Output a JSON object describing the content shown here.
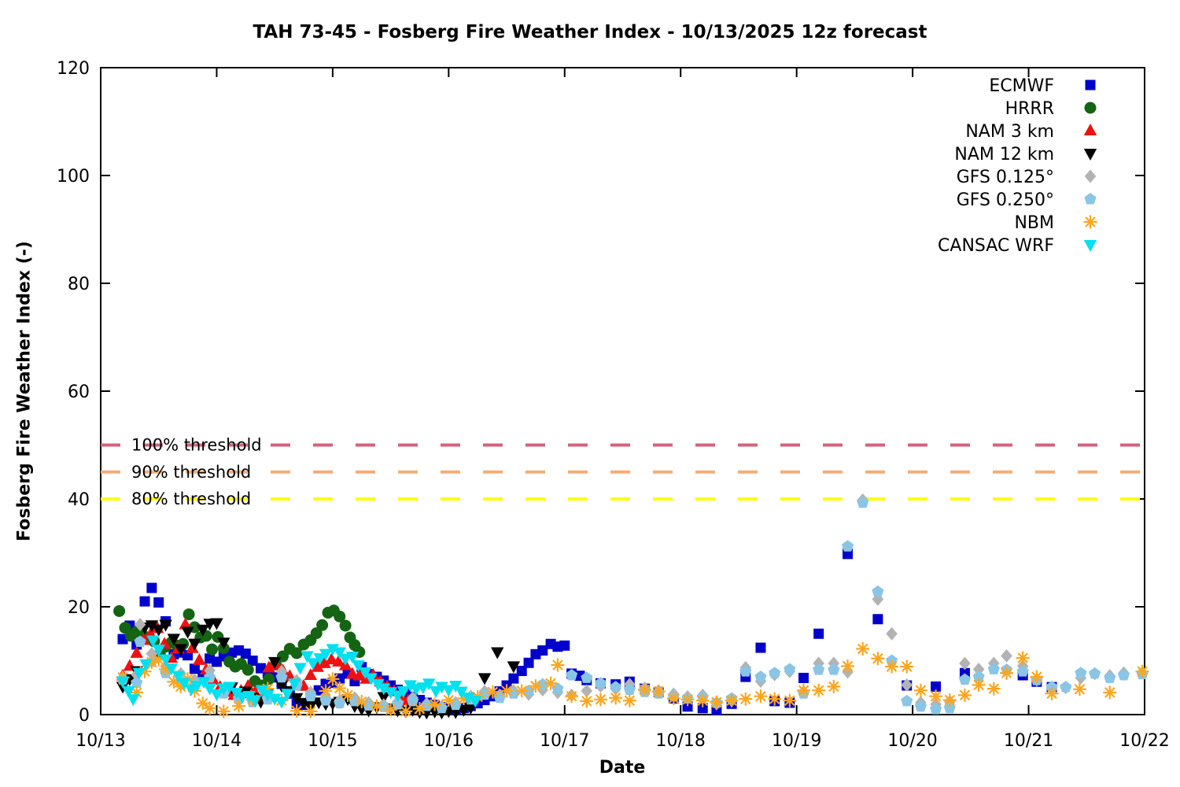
{
  "chart_data": {
    "type": "scatter",
    "title": "TAH 73-45 - Fosberg Fire Weather Index - 10/13/2025 12z forecast",
    "xlabel": "Date",
    "ylabel": "Fosberg Fire Weather Index (-)",
    "x_axis": {
      "tick_labels": [
        "10/13",
        "10/14",
        "10/15",
        "10/16",
        "10/17",
        "10/18",
        "10/19",
        "10/20",
        "10/21",
        "10/22"
      ],
      "unit": "days since 10/13",
      "range": [
        0,
        9
      ]
    },
    "y_axis": {
      "ticks": [
        0,
        20,
        40,
        60,
        80,
        100,
        120
      ],
      "range": [
        0,
        120
      ]
    },
    "grid": false,
    "legend_position": "top-right",
    "thresholds": [
      {
        "label": "100% threshold",
        "value": 50,
        "color": "#d4627e"
      },
      {
        "label": "90% threshold",
        "value": 45,
        "color": "#f6ad75"
      },
      {
        "label": "80% threshold",
        "value": 40,
        "color": "#ffff00"
      }
    ],
    "series": [
      {
        "name": "ECMWF",
        "marker": "square",
        "color": "#0000cd",
        "x": [
          0.19,
          0.25,
          0.31,
          0.38,
          0.44,
          0.5,
          0.56,
          0.63,
          0.69,
          0.75,
          0.81,
          0.88,
          0.94,
          1.0,
          1.06,
          1.13,
          1.19,
          1.25,
          1.31,
          1.38,
          1.44,
          1.5,
          1.56,
          1.63,
          1.69,
          1.75,
          1.81,
          1.88,
          1.94,
          2.0,
          2.06,
          2.13,
          2.19,
          2.25,
          2.31,
          2.38,
          2.44,
          2.5,
          2.56,
          2.63,
          2.69,
          2.75,
          2.81,
          2.88,
          2.94,
          3.0,
          3.06,
          3.13,
          3.19,
          3.25,
          3.31,
          3.38,
          3.44,
          3.5,
          3.56,
          3.63,
          3.69,
          3.75,
          3.81,
          3.88,
          3.94,
          4.0,
          4.06,
          4.13,
          4.19,
          4.31,
          4.44,
          4.56,
          4.69,
          4.81,
          4.94,
          5.06,
          5.19,
          5.31,
          5.44,
          5.56,
          5.69,
          5.81,
          5.94,
          6.06,
          6.19,
          6.44,
          6.7,
          6.95,
          7.2,
          7.45,
          7.95,
          8.07,
          8.2
        ],
        "y": [
          14.0,
          16.5,
          13.0,
          21.0,
          23.5,
          20.8,
          17.3,
          11.2,
          11.5,
          11.0,
          8.5,
          7.3,
          10.4,
          9.8,
          10.8,
          11.5,
          11.9,
          11.3,
          10.0,
          8.6,
          7.7,
          6.9,
          5.7,
          3.9,
          2.0,
          1.8,
          3.4,
          4.5,
          5.7,
          5.9,
          6.7,
          7.6,
          6.2,
          8.8,
          7.5,
          7.0,
          6.3,
          5.4,
          4.6,
          3.9,
          3.3,
          2.7,
          2.2,
          1.8,
          1.4,
          1.1,
          0.9,
          1.2,
          1.6,
          2.1,
          2.7,
          3.4,
          4.3,
          5.4,
          6.7,
          8.1,
          9.6,
          11.2,
          11.9,
          13.1,
          12.6,
          12.8,
          7.6,
          7.2,
          6.4,
          5.8,
          5.6,
          6.1,
          4.8,
          4.2,
          3.0,
          1.5,
          1.2,
          0.8,
          2.0,
          7.0,
          12.4,
          2.5,
          2.2,
          6.8,
          15.0,
          29.8,
          17.7,
          5.4,
          5.2,
          7.7,
          7.3,
          6.1,
          5.1
        ]
      },
      {
        "name": "HRRR",
        "marker": "circle",
        "color": "#146414",
        "x": [
          0.16,
          0.21,
          0.26,
          0.31,
          0.36,
          0.41,
          0.46,
          0.51,
          0.56,
          0.61,
          0.66,
          0.71,
          0.76,
          0.81,
          0.86,
          0.91,
          0.96,
          1.01,
          1.06,
          1.11,
          1.16,
          1.21,
          1.27,
          1.33,
          1.39,
          1.45,
          1.51,
          1.57,
          1.63,
          1.69,
          1.75,
          1.81,
          1.86,
          1.91,
          1.96,
          2.01,
          2.06,
          2.11,
          2.15,
          2.19,
          2.23
        ],
        "y": [
          19.2,
          16.1,
          14.6,
          15.4,
          14.8,
          14.3,
          13.6,
          11.2,
          12.6,
          13.4,
          12.8,
          13.1,
          18.6,
          16.2,
          14.3,
          14.6,
          12.1,
          14.4,
          12.3,
          9.8,
          8.9,
          9.4,
          8.3,
          6.2,
          5.4,
          6.6,
          9.3,
          10.8,
          12.2,
          11.4,
          13.0,
          13.8,
          15.1,
          16.6,
          18.9,
          19.3,
          18.2,
          16.5,
          14.3,
          12.9,
          11.6
        ]
      },
      {
        "name": "NAM 3 km",
        "marker": "triangle-up",
        "color": "#ee1111",
        "x": [
          0.19,
          0.25,
          0.31,
          0.37,
          0.43,
          0.49,
          0.55,
          0.61,
          0.67,
          0.73,
          0.79,
          0.85,
          0.91,
          0.97,
          1.03,
          1.09,
          1.15,
          1.21,
          1.27,
          1.33,
          1.39,
          1.45,
          1.51,
          1.57,
          1.63,
          1.69,
          1.75,
          1.81,
          1.87,
          1.93,
          1.99,
          2.05,
          2.11,
          2.17,
          2.23,
          2.29,
          2.35,
          2.41,
          2.47,
          2.53,
          2.59,
          2.65
        ],
        "y": [
          7.2,
          9.0,
          11.4,
          13.8,
          14.9,
          16.0,
          13.1,
          10.5,
          12.2,
          16.7,
          12.3,
          10.1,
          8.3,
          6.4,
          5.1,
          4.2,
          3.6,
          4.4,
          5.3,
          4.1,
          3.2,
          8.7,
          9.3,
          8.2,
          7.1,
          6.2,
          5.3,
          7.3,
          8.8,
          9.5,
          10.2,
          9.8,
          9.1,
          7.5,
          7.2,
          6.6,
          7.3,
          6.1,
          5.2,
          4.3,
          3.4,
          2.6
        ]
      },
      {
        "name": "NAM 12 km",
        "marker": "triangle-down",
        "color": "#000000",
        "x": [
          0.19,
          0.25,
          0.31,
          0.38,
          0.44,
          0.5,
          0.56,
          0.63,
          0.69,
          0.75,
          0.81,
          0.88,
          0.94,
          1.0,
          1.06,
          1.13,
          1.19,
          1.25,
          1.31,
          1.38,
          1.44,
          1.5,
          1.56,
          1.63,
          1.69,
          1.75,
          1.81,
          1.88,
          1.94,
          2.0,
          2.06,
          2.13,
          2.19,
          2.25,
          2.31,
          2.38,
          2.44,
          2.5,
          2.56,
          2.63,
          2.69,
          2.75,
          2.81,
          2.88,
          2.94,
          3.0,
          3.06,
          3.13,
          3.19,
          3.31,
          3.42,
          3.56
        ],
        "y": [
          5.2,
          6.6,
          8.1,
          16.2,
          16.6,
          15.8,
          16.7,
          14.1,
          12.2,
          15.4,
          13.2,
          15.8,
          16.9,
          17.0,
          13.4,
          5.1,
          3.4,
          4.3,
          3.1,
          2.4,
          4.0,
          9.8,
          5.4,
          4.4,
          3.1,
          2.2,
          1.6,
          2.3,
          2.0,
          2.1,
          2.4,
          2.9,
          1.6,
          1.1,
          0.8,
          1.4,
          3.3,
          1.2,
          0.8,
          0.6,
          0.9,
          0.5,
          0.4,
          0.6,
          0.4,
          0.7,
          0.5,
          0.9,
          1.3,
          6.8,
          11.6,
          9.0
        ]
      },
      {
        "name": "GFS 0.125°",
        "marker": "diamond",
        "color": "#b3b3b3",
        "x": [
          0.19,
          0.31,
          0.34,
          0.44,
          0.56,
          0.69,
          0.81,
          0.94,
          1.06,
          1.19,
          1.31,
          1.44,
          1.56,
          1.69,
          1.81,
          1.94,
          2.06,
          2.19,
          2.31,
          2.44,
          2.56,
          2.69,
          2.81,
          2.94,
          3.06,
          3.19,
          3.31,
          3.44,
          3.56,
          3.69,
          3.81,
          3.94,
          4.06,
          4.19,
          4.31,
          4.44,
          4.56,
          4.69,
          4.81,
          4.94,
          5.06,
          5.19,
          5.31,
          5.44,
          5.56,
          5.69,
          5.81,
          5.94,
          6.06,
          6.19,
          6.32,
          6.44,
          6.57,
          6.7,
          6.82,
          6.95,
          7.07,
          7.2,
          7.32,
          7.45,
          7.57,
          7.7,
          7.81,
          7.95,
          8.07,
          8.2,
          8.32,
          8.45,
          8.57,
          8.7,
          8.82,
          8.98
        ],
        "y": [
          6.8,
          7.4,
          16.7,
          11.3,
          8.9,
          7.6,
          6.4,
          8.2,
          4.6,
          3.4,
          2.8,
          3.3,
          8.0,
          6.3,
          4.1,
          3.2,
          2.6,
          3.1,
          2.2,
          1.8,
          2.4,
          3.1,
          2.0,
          1.5,
          2.2,
          3.4,
          4.3,
          3.6,
          4.4,
          3.8,
          4.6,
          4.1,
          3.6,
          4.4,
          5.3,
          4.8,
          5.6,
          4.9,
          4.4,
          3.8,
          3.3,
          3.6,
          2.0,
          2.6,
          8.7,
          6.2,
          7.4,
          8.0,
          4.2,
          9.5,
          9.5,
          7.9,
          39.8,
          21.4,
          15.0,
          5.5,
          2.2,
          1.9,
          2.4,
          9.5,
          8.4,
          9.5,
          10.9,
          9.0,
          6.4,
          5.1,
          5.0,
          6.8,
          7.6,
          7.2,
          7.7,
          7.8
        ]
      },
      {
        "name": "GFS 0.250°",
        "marker": "pentagon",
        "color": "#8ac5e6",
        "x": [
          0.19,
          0.31,
          0.34,
          0.44,
          0.56,
          0.69,
          0.81,
          0.94,
          1.06,
          1.19,
          1.31,
          1.44,
          1.56,
          1.69,
          1.81,
          1.94,
          2.06,
          2.19,
          2.31,
          2.44,
          2.56,
          2.69,
          2.81,
          2.94,
          3.06,
          3.19,
          3.31,
          3.44,
          3.56,
          3.69,
          3.81,
          3.94,
          4.06,
          4.19,
          4.31,
          4.44,
          4.56,
          4.69,
          4.81,
          4.94,
          5.06,
          5.19,
          5.31,
          5.44,
          5.56,
          5.69,
          5.81,
          5.94,
          6.06,
          6.19,
          6.32,
          6.44,
          6.57,
          6.7,
          6.82,
          6.95,
          7.07,
          7.2,
          7.32,
          7.45,
          7.57,
          7.7,
          7.81,
          7.95,
          8.07,
          8.2,
          8.32,
          8.45,
          8.57,
          8.7,
          8.82,
          8.98
        ],
        "y": [
          6.5,
          5.9,
          13.5,
          9.8,
          7.7,
          6.6,
          5.5,
          6.9,
          3.9,
          2.9,
          2.3,
          2.8,
          6.9,
          5.4,
          3.4,
          2.6,
          2.1,
          2.5,
          1.7,
          1.4,
          1.9,
          2.5,
          1.6,
          1.2,
          1.8,
          2.8,
          3.7,
          3.1,
          3.9,
          4.4,
          5.6,
          4.8,
          7.3,
          6.8,
          5.8,
          5.1,
          4.6,
          4.2,
          3.9,
          3.4,
          3.0,
          3.2,
          2.2,
          3.0,
          8.0,
          7.0,
          7.7,
          8.4,
          3.9,
          8.3,
          8.3,
          31.2,
          39.3,
          22.8,
          10.0,
          2.5,
          1.5,
          1.0,
          1.2,
          6.5,
          7.0,
          8.4,
          8.3,
          8.0,
          6.4,
          5.1,
          5.1,
          7.7,
          7.6,
          6.8,
          7.3,
          7.5
        ]
      },
      {
        "name": "NBM",
        "marker": "asterisk",
        "color": "#ffa51e",
        "x": [
          0.19,
          0.31,
          0.38,
          0.44,
          0.5,
          0.56,
          0.63,
          0.69,
          0.75,
          0.81,
          0.88,
          0.94,
          1.06,
          1.19,
          1.31,
          1.44,
          1.56,
          1.69,
          1.81,
          1.94,
          2.0,
          2.06,
          2.13,
          2.25,
          2.38,
          2.5,
          2.63,
          2.75,
          2.88,
          3.0,
          3.13,
          3.25,
          3.38,
          3.5,
          3.63,
          3.75,
          3.88,
          3.94,
          4.06,
          4.19,
          4.31,
          4.44,
          4.56,
          4.69,
          4.81,
          4.94,
          5.06,
          5.19,
          5.31,
          5.44,
          5.56,
          5.69,
          5.81,
          5.94,
          6.06,
          6.19,
          6.32,
          6.44,
          6.57,
          6.7,
          6.82,
          6.95,
          7.07,
          7.2,
          7.32,
          7.45,
          7.57,
          7.7,
          7.81,
          7.95,
          8.07,
          8.2,
          8.44,
          8.7,
          8.98
        ],
        "y": [
          6.9,
          4.1,
          8.0,
          9.7,
          10.2,
          8.4,
          6.1,
          5.2,
          6.6,
          4.4,
          2.1,
          1.2,
          0.6,
          1.6,
          2.8,
          4.8,
          2.6,
          0.7,
          0.6,
          4.4,
          6.6,
          4.9,
          3.6,
          2.4,
          1.6,
          0.9,
          0.6,
          1.1,
          1.9,
          2.7,
          3.0,
          3.3,
          4.2,
          4.4,
          4.4,
          5.3,
          5.8,
          9.2,
          3.4,
          2.5,
          2.8,
          3.1,
          2.6,
          4.6,
          4.3,
          3.0,
          2.8,
          2.6,
          2.3,
          2.6,
          2.9,
          3.4,
          2.9,
          2.6,
          4.5,
          4.5,
          5.2,
          9.0,
          12.2,
          10.4,
          8.9,
          8.9,
          4.5,
          3.4,
          2.7,
          3.6,
          5.5,
          4.8,
          7.7,
          10.5,
          7.0,
          3.9,
          4.7,
          4.1,
          8.0
        ]
      },
      {
        "name": "CANSAC WRF",
        "marker": "triangle-down",
        "color": "#00e0ef",
        "x": [
          0.19,
          0.24,
          0.28,
          0.33,
          0.39,
          0.45,
          0.5,
          0.56,
          0.61,
          0.67,
          0.72,
          0.78,
          0.83,
          0.89,
          0.94,
          1.0,
          1.06,
          1.11,
          1.17,
          1.22,
          1.28,
          1.33,
          1.39,
          1.44,
          1.5,
          1.56,
          1.61,
          1.67,
          1.72,
          1.78,
          1.83,
          1.89,
          1.94,
          2.0,
          2.06,
          2.11,
          2.17,
          2.22,
          2.28,
          2.33,
          2.39,
          2.44,
          2.5,
          2.56,
          2.61,
          2.67,
          2.72,
          2.78,
          2.83,
          2.89,
          2.94,
          3.0,
          3.06,
          3.11,
          3.17,
          3.23
        ],
        "y": [
          6.2,
          4.4,
          2.9,
          7.8,
          9.4,
          13.8,
          12.1,
          10.3,
          8.6,
          7.2,
          5.9,
          4.7,
          5.4,
          6.1,
          4.9,
          3.8,
          4.9,
          5.2,
          4.1,
          3.3,
          3.5,
          2.7,
          4.6,
          3.7,
          3.0,
          2.4,
          3.9,
          5.8,
          8.7,
          10.9,
          9.6,
          10.5,
          11.3,
          12.2,
          11.6,
          10.4,
          10.8,
          9.2,
          7.9,
          6.8,
          5.7,
          4.9,
          4.2,
          3.6,
          4.4,
          5.5,
          4.8,
          5.1,
          5.8,
          4.4,
          5.2,
          4.6,
          5.4,
          4.3,
          3.2,
          2.6
        ]
      }
    ]
  }
}
